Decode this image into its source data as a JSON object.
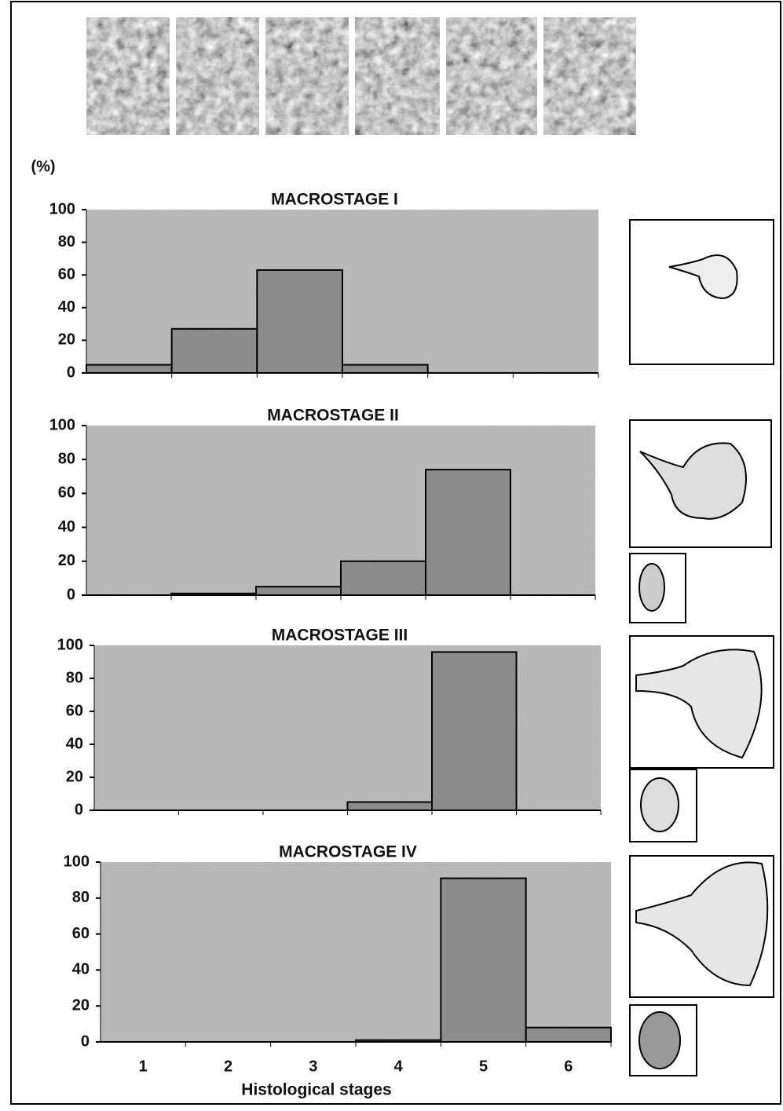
{
  "chart_data": [
    {
      "type": "bar",
      "title": "MACROSTAGE I",
      "y_label": "(%)",
      "values": [
        5,
        27,
        63,
        5,
        0,
        0
      ],
      "color": "#8c8c8c",
      "ylim": [
        0,
        100
      ],
      "yticks": [
        0,
        20,
        40,
        60,
        80,
        100
      ]
    },
    {
      "type": "bar",
      "title": "MACROSTAGE II",
      "values": [
        0,
        1,
        5,
        20,
        74,
        0
      ],
      "color": "#8c8c8c",
      "ylim": [
        0,
        100
      ],
      "yticks": [
        0,
        20,
        40,
        60,
        80,
        100
      ]
    },
    {
      "type": "bar",
      "title": "MACROSTAGE III",
      "values": [
        0,
        0,
        0,
        5,
        96,
        0
      ],
      "color": "#8c8c8c",
      "ylim": [
        0,
        100
      ],
      "yticks": [
        0,
        20,
        40,
        60,
        80,
        100
      ]
    },
    {
      "type": "bar",
      "title": "MACROSTAGE IV",
      "x_label": "Histological stages",
      "categories": [
        "1",
        "2",
        "3",
        "4",
        "5",
        "6"
      ],
      "values": [
        0,
        0,
        0,
        1,
        91,
        8
      ],
      "color": "#8c8c8c",
      "ylim": [
        0,
        100
      ],
      "yticks": [
        0,
        20,
        40,
        60,
        80,
        100
      ]
    }
  ]
}
